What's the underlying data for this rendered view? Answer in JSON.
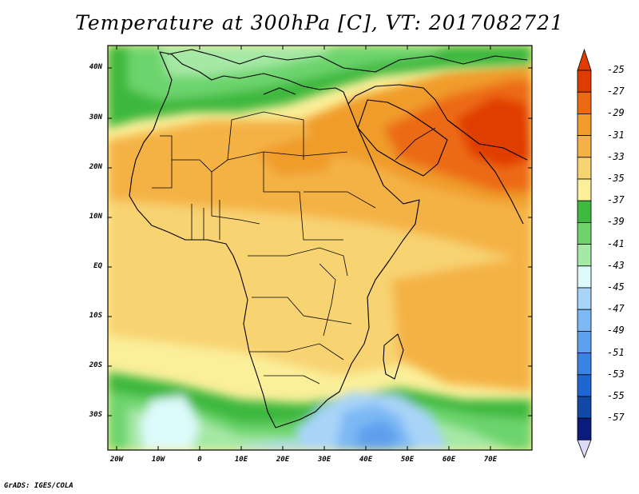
{
  "title": "Temperature at 300hPa [C], VT: 2017082721",
  "credit": "GrADS: IGES/COLA",
  "map": {
    "lat_labels": [
      "40N",
      "30N",
      "20N",
      "10N",
      "EQ",
      "10S",
      "20S",
      "30S"
    ],
    "lon_labels": [
      "20W",
      "10W",
      "0",
      "10E",
      "20E",
      "30E",
      "40E",
      "50E",
      "60E",
      "70E"
    ]
  },
  "colorbar": {
    "labels": [
      "-25",
      "-27",
      "-29",
      "-31",
      "-33",
      "-35",
      "-37",
      "-39",
      "-41",
      "-43",
      "-45",
      "-47",
      "-49",
      "-51",
      "-53",
      "-55",
      "-57"
    ],
    "colors": [
      "#e03c00",
      "#ec6a14",
      "#f09c2a",
      "#f4b245",
      "#f8d372",
      "#fbef9a",
      "#3eb83e",
      "#6dd46d",
      "#a6e8a6",
      "#dcfafa",
      "#a8d4f8",
      "#7cb8f4",
      "#5ea0ee",
      "#3a82e4",
      "#2066d2",
      "#1248a8",
      "#0c1c7c"
    ],
    "top_arrow_color": "#e03c00",
    "bottom_arrow_color": "#dcdcf8"
  }
}
